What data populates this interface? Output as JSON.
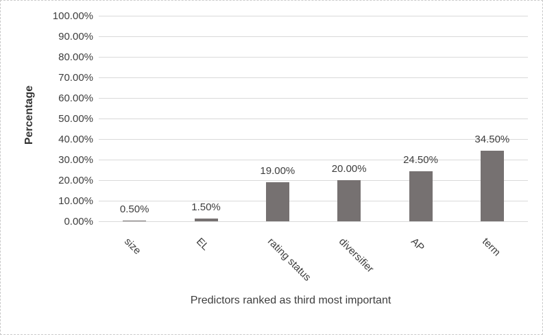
{
  "chart_data": {
    "type": "bar",
    "title": "",
    "xlabel": "Predictors ranked as third most important",
    "ylabel": "Percentage",
    "categories": [
      "size",
      "EL",
      "rating status",
      "diversifier",
      "AP",
      "term"
    ],
    "values": [
      0.5,
      1.5,
      19.0,
      20.0,
      24.5,
      34.5
    ],
    "data_labels": [
      "0.50%",
      "1.50%",
      "19.00%",
      "20.00%",
      "24.50%",
      "34.50%"
    ],
    "y_ticks": [
      "0.00%",
      "10.00%",
      "20.00%",
      "30.00%",
      "40.00%",
      "50.00%",
      "60.00%",
      "70.00%",
      "80.00%",
      "90.00%",
      "100.00%"
    ],
    "ylim": [
      0,
      100
    ],
    "grid": true,
    "legend": false,
    "bar_color": "#767171",
    "gridline_color": "#d9d9d9",
    "text_color": "#3d3d3d",
    "border_color": "#c9c9c9"
  }
}
